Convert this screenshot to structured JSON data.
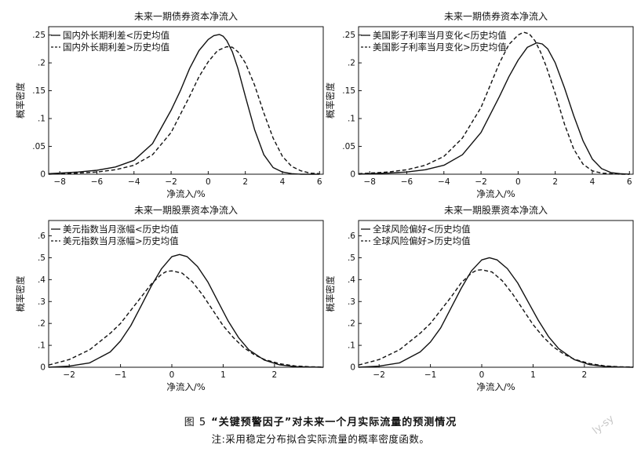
{
  "figure": {
    "number": "图 5",
    "title": "“关键预警因子”对未来一个月实际流量的预测情况",
    "note": "注:采用稳定分布拟合实际流量的概率密度函数。",
    "watermark": "ly-sy"
  },
  "chart_data": [
    {
      "type": "line",
      "title": "未来一期债券资本净流入",
      "xlabel": "净流入/%",
      "ylabel": "概率密度",
      "xlim": [
        -8.6,
        6.2
      ],
      "ylim": [
        0,
        0.265
      ],
      "xticks": [
        -8,
        -6,
        -4,
        -2,
        0,
        2,
        4,
        6
      ],
      "yticks": [
        0,
        0.05,
        0.1,
        0.15,
        0.2,
        0.25
      ],
      "legend_position": "top-left",
      "series": [
        {
          "name": "国内外长期利差<历史均值",
          "style": "solid",
          "x": [
            -8.6,
            -8,
            -7,
            -6,
            -5,
            -4,
            -3,
            -2,
            -1.5,
            -1,
            -0.5,
            0,
            0.3,
            0.6,
            0.8,
            1.0,
            1.3,
            1.6,
            2.0,
            2.5,
            3.0,
            3.5,
            4.0,
            4.5,
            5.0,
            5.5,
            6.0
          ],
          "y": [
            0.001,
            0.002,
            0.004,
            0.007,
            0.013,
            0.025,
            0.055,
            0.115,
            0.15,
            0.19,
            0.222,
            0.242,
            0.249,
            0.251,
            0.248,
            0.24,
            0.22,
            0.19,
            0.14,
            0.08,
            0.035,
            0.012,
            0.004,
            0.001,
            0.0,
            0.0,
            0.0
          ]
        },
        {
          "name": "国内外长期利差>历史均值",
          "style": "dashed",
          "x": [
            -8.6,
            -8,
            -7,
            -6,
            -5,
            -4,
            -3,
            -2,
            -1,
            -0.5,
            0,
            0.5,
            1.0,
            1.3,
            1.6,
            2.0,
            2.5,
            3.0,
            3.5,
            4.0,
            4.5,
            5.0,
            5.5,
            6.0
          ],
          "y": [
            0.0,
            0.001,
            0.002,
            0.004,
            0.008,
            0.016,
            0.035,
            0.075,
            0.14,
            0.175,
            0.202,
            0.222,
            0.229,
            0.228,
            0.22,
            0.2,
            0.16,
            0.11,
            0.065,
            0.032,
            0.014,
            0.006,
            0.002,
            0.001
          ]
        }
      ]
    },
    {
      "type": "line",
      "title": "未来一期债券资本净流入",
      "xlabel": "净流入/%",
      "ylabel": "概率密度",
      "xlim": [
        -8.6,
        6.2
      ],
      "ylim": [
        0,
        0.265
      ],
      "xticks": [
        -8,
        -6,
        -4,
        -2,
        0,
        2,
        4,
        6
      ],
      "yticks": [
        0,
        0.05,
        0.1,
        0.15,
        0.2,
        0.25
      ],
      "legend_position": "top-left",
      "series": [
        {
          "name": "美国影子利率当月变化<历史均值",
          "style": "solid",
          "x": [
            -8.6,
            -8,
            -7,
            -6,
            -5,
            -4,
            -3,
            -2,
            -1,
            -0.5,
            0,
            0.5,
            1.0,
            1.3,
            1.6,
            2.0,
            2.5,
            3.0,
            3.5,
            4.0,
            4.5,
            5.0,
            5.5,
            6.0
          ],
          "y": [
            0.0,
            0.001,
            0.002,
            0.004,
            0.008,
            0.016,
            0.035,
            0.075,
            0.14,
            0.175,
            0.205,
            0.228,
            0.236,
            0.234,
            0.225,
            0.2,
            0.155,
            0.105,
            0.06,
            0.027,
            0.01,
            0.003,
            0.001,
            0.0
          ]
        },
        {
          "name": "美国影子利率当月变化>历史均值",
          "style": "dashed",
          "x": [
            -8.6,
            -8,
            -7,
            -6,
            -5,
            -4,
            -3,
            -2,
            -1.5,
            -1,
            -0.5,
            0,
            0.3,
            0.6,
            0.9,
            1.2,
            1.5,
            2.0,
            2.5,
            3.0,
            3.5,
            4.0,
            4.5,
            5.0,
            5.5,
            6.0
          ],
          "y": [
            0.001,
            0.002,
            0.004,
            0.008,
            0.016,
            0.032,
            0.065,
            0.12,
            0.16,
            0.2,
            0.233,
            0.25,
            0.255,
            0.252,
            0.24,
            0.22,
            0.195,
            0.145,
            0.09,
            0.045,
            0.018,
            0.006,
            0.002,
            0.001,
            0.0,
            0.0
          ]
        }
      ]
    },
    {
      "type": "line",
      "title": "未来一期股票资本净流入",
      "xlabel": "净流入/%",
      "ylabel": "概率密度",
      "xlim": [
        -2.4,
        2.95
      ],
      "ylim": [
        0,
        0.67
      ],
      "xticks": [
        -2,
        -1,
        0,
        1,
        2
      ],
      "yticks": [
        0,
        0.1,
        0.2,
        0.3,
        0.4,
        0.5,
        0.6
      ],
      "legend_position": "top-left",
      "series": [
        {
          "name": "美元指数当月涨幅<历史均值",
          "style": "solid",
          "x": [
            -2.4,
            -2.0,
            -1.6,
            -1.2,
            -1.0,
            -0.8,
            -0.6,
            -0.4,
            -0.2,
            0.0,
            0.15,
            0.3,
            0.5,
            0.7,
            0.9,
            1.1,
            1.3,
            1.5,
            1.8,
            2.1,
            2.4,
            2.7,
            2.95
          ],
          "y": [
            0.0,
            0.005,
            0.02,
            0.07,
            0.12,
            0.19,
            0.28,
            0.37,
            0.45,
            0.505,
            0.515,
            0.505,
            0.46,
            0.39,
            0.3,
            0.21,
            0.135,
            0.08,
            0.033,
            0.011,
            0.003,
            0.001,
            0.0
          ]
        },
        {
          "name": "美元指数当月涨幅>历史均值",
          "style": "dashed",
          "x": [
            -2.4,
            -2.0,
            -1.6,
            -1.2,
            -1.0,
            -0.8,
            -0.6,
            -0.4,
            -0.2,
            -0.1,
            0.0,
            0.2,
            0.4,
            0.6,
            0.8,
            1.0,
            1.2,
            1.4,
            1.6,
            1.8,
            2.1,
            2.4,
            2.7,
            2.95
          ],
          "y": [
            0.01,
            0.035,
            0.08,
            0.155,
            0.2,
            0.26,
            0.32,
            0.38,
            0.425,
            0.438,
            0.44,
            0.43,
            0.39,
            0.33,
            0.26,
            0.19,
            0.135,
            0.09,
            0.058,
            0.036,
            0.016,
            0.006,
            0.002,
            0.001
          ]
        }
      ]
    },
    {
      "type": "line",
      "title": "未来一期股票资本净流入",
      "xlabel": "净流入/%",
      "ylabel": "概率密度",
      "xlim": [
        -2.4,
        2.95
      ],
      "ylim": [
        0,
        0.67
      ],
      "xticks": [
        -2,
        -1,
        0,
        1,
        2
      ],
      "yticks": [
        0,
        0.1,
        0.2,
        0.3,
        0.4,
        0.5,
        0.6
      ],
      "legend_position": "top-left",
      "series": [
        {
          "name": "全球风险偏好<历史均值",
          "style": "solid",
          "x": [
            -2.4,
            -2.0,
            -1.6,
            -1.2,
            -1.0,
            -0.8,
            -0.6,
            -0.4,
            -0.2,
            0.0,
            0.15,
            0.3,
            0.5,
            0.7,
            0.9,
            1.1,
            1.3,
            1.5,
            1.8,
            2.1,
            2.4,
            2.7,
            2.95
          ],
          "y": [
            0.0,
            0.005,
            0.02,
            0.07,
            0.115,
            0.18,
            0.27,
            0.36,
            0.44,
            0.49,
            0.5,
            0.49,
            0.45,
            0.385,
            0.3,
            0.215,
            0.14,
            0.085,
            0.035,
            0.012,
            0.004,
            0.001,
            0.0
          ]
        },
        {
          "name": "全球风险偏好>历史均值",
          "style": "dashed",
          "x": [
            -2.4,
            -2.0,
            -1.6,
            -1.2,
            -1.0,
            -0.8,
            -0.6,
            -0.4,
            -0.2,
            -0.1,
            0.0,
            0.2,
            0.4,
            0.6,
            0.8,
            1.0,
            1.2,
            1.4,
            1.6,
            1.8,
            2.1,
            2.4,
            2.7,
            2.95
          ],
          "y": [
            0.01,
            0.035,
            0.08,
            0.155,
            0.2,
            0.26,
            0.32,
            0.385,
            0.43,
            0.443,
            0.445,
            0.435,
            0.395,
            0.335,
            0.265,
            0.195,
            0.138,
            0.092,
            0.06,
            0.037,
            0.017,
            0.006,
            0.002,
            0.001
          ]
        }
      ]
    }
  ]
}
